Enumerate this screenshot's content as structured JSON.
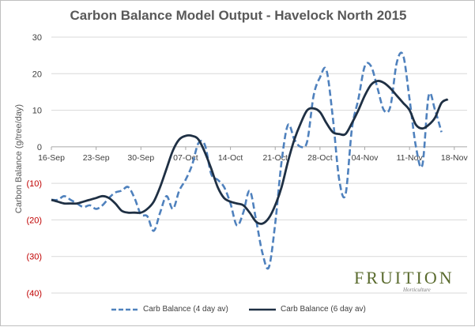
{
  "chart_data": {
    "type": "line",
    "title": "Carbon Balance Model Output  -  Havelock North 2015",
    "ylabel": "Carbon Balance (g/tree/day)",
    "xlabel": "",
    "ylim": [
      -40,
      30
    ],
    "grid": true,
    "legend_position": "bottom",
    "y_ticks": [
      {
        "value": 30,
        "label": "30"
      },
      {
        "value": 20,
        "label": "20"
      },
      {
        "value": 10,
        "label": "10"
      },
      {
        "value": 0,
        "label": "0"
      },
      {
        "value": -10,
        "label": "(10)"
      },
      {
        "value": -20,
        "label": "(20)"
      },
      {
        "value": -30,
        "label": "(30)"
      },
      {
        "value": -40,
        "label": "(40)"
      }
    ],
    "x_ticks": [
      {
        "day": 0,
        "label": "16-Sep"
      },
      {
        "day": 7,
        "label": "23-Sep"
      },
      {
        "day": 14,
        "label": "30-Sep"
      },
      {
        "day": 21,
        "label": "07-Oct"
      },
      {
        "day": 28,
        "label": "14-Oct"
      },
      {
        "day": 35,
        "label": "21-Oct"
      },
      {
        "day": 42,
        "label": "28-Oct"
      },
      {
        "day": 49,
        "label": "04-Nov"
      },
      {
        "day": 56,
        "label": "11-Nov"
      },
      {
        "day": 63,
        "label": "18-Nov"
      }
    ],
    "xlim": [
      0,
      65
    ],
    "series": [
      {
        "name": "Carb Balance (4 day av)",
        "color": "#4f81bd",
        "style": "dashed",
        "points": [
          [
            0,
            -14.5
          ],
          [
            1,
            -14.5
          ],
          [
            2,
            -13.5
          ],
          [
            3,
            -14.5
          ],
          [
            4,
            -15.5
          ],
          [
            5,
            -16.5
          ],
          [
            6,
            -16
          ],
          [
            7,
            -17
          ],
          [
            8,
            -16
          ],
          [
            9,
            -14
          ],
          [
            10,
            -12.5
          ],
          [
            11,
            -12
          ],
          [
            12,
            -11
          ],
          [
            13,
            -14
          ],
          [
            14,
            -18.5
          ],
          [
            15,
            -19
          ],
          [
            16,
            -23
          ],
          [
            17,
            -18
          ],
          [
            18,
            -13.5
          ],
          [
            19,
            -17
          ],
          [
            20,
            -12
          ],
          [
            21,
            -9
          ],
          [
            22,
            -5
          ],
          [
            23,
            1
          ],
          [
            24,
            0.5
          ],
          [
            25,
            -7.5
          ],
          [
            26,
            -9
          ],
          [
            27,
            -11
          ],
          [
            28,
            -15.5
          ],
          [
            29,
            -21.5
          ],
          [
            30,
            -18
          ],
          [
            31,
            -12
          ],
          [
            32,
            -20
          ],
          [
            33,
            -29
          ],
          [
            34,
            -33
          ],
          [
            35,
            -21
          ],
          [
            36,
            -4
          ],
          [
            37,
            6
          ],
          [
            38,
            2
          ],
          [
            39,
            0
          ],
          [
            40,
            1.5
          ],
          [
            41,
            14
          ],
          [
            42,
            19
          ],
          [
            43,
            21
          ],
          [
            44,
            8
          ],
          [
            45,
            -9
          ],
          [
            46,
            -13
          ],
          [
            47,
            5
          ],
          [
            48,
            13
          ],
          [
            49,
            22
          ],
          [
            50,
            22
          ],
          [
            51,
            16
          ],
          [
            52,
            10
          ],
          [
            53,
            11
          ],
          [
            54,
            23
          ],
          [
            55,
            25
          ],
          [
            56,
            13
          ],
          [
            57,
            0
          ],
          [
            58,
            -5
          ],
          [
            59,
            14
          ],
          [
            60,
            10
          ],
          [
            61,
            4
          ]
        ]
      },
      {
        "name": "Carb Balance (6 day av)",
        "color": "#1f3044",
        "style": "solid",
        "points": [
          [
            0,
            -14.5
          ],
          [
            1,
            -15
          ],
          [
            2,
            -15.5
          ],
          [
            3,
            -15.5
          ],
          [
            4,
            -15.5
          ],
          [
            5,
            -15
          ],
          [
            6,
            -14.5
          ],
          [
            7,
            -14
          ],
          [
            8,
            -13.5
          ],
          [
            9,
            -14
          ],
          [
            10,
            -15.5
          ],
          [
            11,
            -17.5
          ],
          [
            12,
            -18
          ],
          [
            13,
            -18
          ],
          [
            14,
            -18
          ],
          [
            15,
            -17
          ],
          [
            16,
            -15
          ],
          [
            17,
            -11
          ],
          [
            18,
            -6
          ],
          [
            19,
            -1
          ],
          [
            20,
            2
          ],
          [
            21,
            3
          ],
          [
            22,
            3
          ],
          [
            23,
            2
          ],
          [
            24,
            -1.5
          ],
          [
            25,
            -6
          ],
          [
            26,
            -11
          ],
          [
            27,
            -14
          ],
          [
            28,
            -15
          ],
          [
            29,
            -15.5
          ],
          [
            30,
            -16
          ],
          [
            31,
            -18
          ],
          [
            32,
            -20.5
          ],
          [
            33,
            -21
          ],
          [
            34,
            -19.5
          ],
          [
            35,
            -16
          ],
          [
            36,
            -11
          ],
          [
            37,
            -4
          ],
          [
            38,
            2
          ],
          [
            39,
            6.5
          ],
          [
            40,
            10
          ],
          [
            41,
            10.5
          ],
          [
            42,
            9.5
          ],
          [
            43,
            6.5
          ],
          [
            44,
            4
          ],
          [
            45,
            3.5
          ],
          [
            46,
            3.5
          ],
          [
            47,
            6.5
          ],
          [
            48,
            10
          ],
          [
            49,
            14
          ],
          [
            50,
            17
          ],
          [
            51,
            18
          ],
          [
            52,
            17.5
          ],
          [
            53,
            16
          ],
          [
            54,
            14
          ],
          [
            55,
            12
          ],
          [
            56,
            10
          ],
          [
            57,
            6
          ],
          [
            58,
            5
          ],
          [
            59,
            6
          ],
          [
            60,
            8
          ],
          [
            61,
            12
          ],
          [
            62,
            13
          ]
        ]
      }
    ]
  },
  "watermark": {
    "word": "FRUITION",
    "sub": "Horticulture",
    "color": "#5a6b2e"
  }
}
